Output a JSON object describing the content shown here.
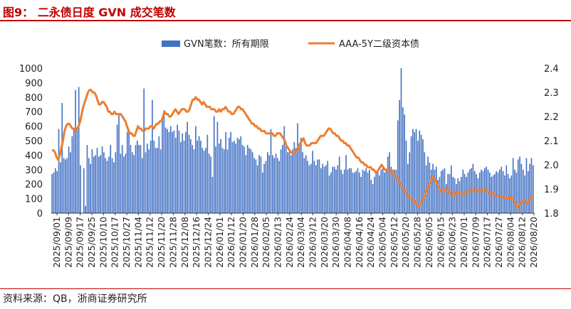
{
  "title": "图9： 二永债日度 GVN 成交笔数",
  "source": "资料来源：QB，浙商证券研究所",
  "colors": {
    "bar": "#4472c4",
    "line": "#ed7d31",
    "accent": "#c00000",
    "axis": "#333333"
  },
  "chart_data": {
    "type": "bar+line",
    "legend_position": "top-center",
    "grid": false,
    "x_tick_labels": [
      "2025/09/01",
      "2025/09/09",
      "2025/09/17",
      "2025/09/25",
      "2025/10/10",
      "2025/10/17",
      "2025/10/27",
      "2025/11/04",
      "2025/11/12",
      "2025/11/20",
      "2025/11/28",
      "2025/12/08",
      "2025/12/16",
      "2025/12/24",
      "2026/01/01",
      "2026/01/12",
      "2026/01/20",
      "2026/01/28",
      "2026/02/05",
      "2026/02/13",
      "2026/02/24",
      "2026/03/04",
      "2026/03/12",
      "2026/03/20",
      "2026/03/30",
      "2026/04/08",
      "2026/04/16",
      "2026/04/24",
      "2026/05/04",
      "2026/05/12",
      "2026/05/20",
      "2026/05/28",
      "2026/06/05",
      "2026/06/15",
      "2026/06/23",
      "2026/07/01",
      "2026/07/09",
      "2026/07/17",
      "2026/07/27",
      "2026/08/04",
      "2026/08/12",
      "2026/08/20"
    ],
    "y_left": {
      "min": 0,
      "max": 1000,
      "ticks": [
        0,
        100,
        200,
        300,
        400,
        500,
        600,
        700,
        800,
        900,
        1000
      ]
    },
    "y_right": {
      "min": 1.8,
      "max": 2.4,
      "ticks": [
        "1.8",
        "1.9",
        "2.0",
        "2.1",
        "2.2",
        "2.3",
        "2.4"
      ]
    },
    "series": [
      {
        "name": "GVN笔数：所有期限",
        "type": "bar",
        "axis": "left",
        "values": [
          270,
          280,
          310,
          290,
          580,
          350,
          760,
          380,
          370,
          380,
          460,
          420,
          530,
          580,
          850,
          580,
          870,
          330,
          0,
          310,
          50,
          470,
          380,
          340,
          440,
          390,
          400,
          450,
          390,
          400,
          460,
          420,
          380,
          360,
          390,
          470,
          380,
          350,
          420,
          610,
          680,
          410,
          470,
          390,
          410,
          560,
          580,
          470,
          420,
          400,
          470,
          500,
          470,
          470,
          380,
          860,
          420,
          480,
          440,
          500,
          780,
          500,
          450,
          450,
          530,
          440,
          640,
          710,
          590,
          580,
          560,
          600,
          560,
          570,
          520,
          610,
          570,
          490,
          550,
          500,
          560,
          630,
          540,
          510,
          470,
          440,
          600,
          500,
          530,
          500,
          450,
          430,
          450,
          540,
          410,
          390,
          250,
          670,
          460,
          630,
          480,
          510,
          450,
          440,
          560,
          440,
          520,
          560,
          490,
          500,
          480,
          520,
          510,
          530,
          470,
          460,
          400,
          470,
          450,
          440,
          420,
          380,
          370,
          330,
          400,
          390,
          280,
          340,
          360,
          420,
          400,
          580,
          400,
          380,
          410,
          380,
          360,
          440,
          470,
          600,
          460,
          420,
          420,
          400,
          440,
          490,
          450,
          620,
          470,
          520,
          420,
          380,
          400,
          360,
          330,
          340,
          430,
          360,
          330,
          370,
          370,
          310,
          340,
          320,
          330,
          360,
          260,
          280,
          320,
          320,
          300,
          330,
          390,
          300,
          270,
          300,
          400,
          300,
          310,
          310,
          280,
          280,
          290,
          310,
          280,
          250,
          300,
          290,
          310,
          280,
          300,
          230,
          200,
          250,
          280,
          290,
          260,
          300,
          310,
          280,
          300,
          390,
          420,
          320,
          300,
          300,
          300,
          640,
          780,
          1000,
          730,
          680,
          500,
          340,
          420,
          530,
          580,
          560,
          580,
          500,
          570,
          540,
          510,
          420,
          330,
          390,
          350,
          300,
          340,
          300,
          320,
          230,
          250,
          290,
          300,
          310,
          200,
          270,
          270,
          330,
          250,
          240,
          200,
          240,
          220,
          250,
          300,
          270,
          250,
          280,
          300,
          310,
          340,
          290,
          270,
          240,
          280,
          300,
          290,
          310,
          320,
          300,
          280,
          250,
          260,
          270,
          290,
          280,
          300,
          320,
          290,
          260,
          330,
          270,
          240,
          260,
          380,
          300,
          280,
          370,
          390,
          340,
          300,
          260,
          380,
          290,
          340,
          380,
          330
        ]
      },
      {
        "name": "AAA-5Y二级资本债",
        "type": "line",
        "axis": "right",
        "values": [
          2.06,
          2.06,
          2.05,
          2.03,
          2.02,
          2.04,
          2.07,
          2.1,
          2.14,
          2.16,
          2.17,
          2.17,
          2.16,
          2.15,
          2.15,
          2.14,
          2.15,
          2.16,
          2.18,
          2.21,
          2.24,
          2.26,
          2.28,
          2.3,
          2.31,
          2.31,
          2.3,
          2.3,
          2.29,
          2.27,
          2.25,
          2.25,
          2.26,
          2.26,
          2.25,
          2.24,
          2.22,
          2.22,
          2.21,
          2.21,
          2.22,
          2.21,
          2.21,
          2.21,
          2.21,
          2.2,
          2.19,
          2.18,
          2.16,
          2.14,
          2.13,
          2.13,
          2.12,
          2.12,
          2.14,
          2.16,
          2.15,
          2.15,
          2.14,
          2.14,
          2.15,
          2.15,
          2.15,
          2.16,
          2.16,
          2.15,
          2.16,
          2.17,
          2.17,
          2.18,
          2.18,
          2.2,
          2.22,
          2.21,
          2.21,
          2.2,
          2.2,
          2.21,
          2.22,
          2.23,
          2.22,
          2.21,
          2.22,
          2.23,
          2.23,
          2.23,
          2.22,
          2.22,
          2.23,
          2.25,
          2.27,
          2.27,
          2.28,
          2.27,
          2.27,
          2.26,
          2.25,
          2.26,
          2.25,
          2.24,
          2.24,
          2.24,
          2.23,
          2.23,
          2.23,
          2.22,
          2.22,
          2.23,
          2.22,
          2.23,
          2.23,
          2.24,
          2.23,
          2.22,
          2.22,
          2.21,
          2.21,
          2.22,
          2.23,
          2.24,
          2.24,
          2.23,
          2.23,
          2.22,
          2.21,
          2.2,
          2.19,
          2.18,
          2.17,
          2.17,
          2.16,
          2.16,
          2.15,
          2.15,
          2.14,
          2.14,
          2.14,
          2.13,
          2.13,
          2.13,
          2.13,
          2.13,
          2.12,
          2.12,
          2.13,
          2.13,
          2.13,
          2.12,
          2.11,
          2.1,
          2.08,
          2.07,
          2.06,
          2.05,
          2.05,
          2.05,
          2.06,
          2.06,
          2.08,
          2.09,
          2.1,
          2.11,
          2.09,
          2.08,
          2.08,
          2.08,
          2.09,
          2.09,
          2.09,
          2.09,
          2.1,
          2.11,
          2.12,
          2.12,
          2.12,
          2.13,
          2.14,
          2.15,
          2.15,
          2.14,
          2.13,
          2.13,
          2.12,
          2.12,
          2.11,
          2.1,
          2.1,
          2.09,
          2.09,
          2.08,
          2.08,
          2.07,
          2.06,
          2.05,
          2.04,
          2.03,
          2.03,
          2.02,
          2.01,
          2.01,
          2.0,
          2.0,
          1.99,
          1.99,
          1.99,
          1.98,
          1.98,
          1.97,
          1.97,
          1.98,
          1.99,
          2.0,
          1.99,
          1.98,
          1.98,
          1.98,
          1.97,
          1.98,
          1.97,
          1.96,
          1.95,
          1.94,
          1.93,
          1.92,
          1.91,
          1.9,
          1.89,
          1.88,
          1.87,
          1.86,
          1.86,
          1.85,
          1.85,
          1.84,
          1.83,
          1.83,
          1.84,
          1.85,
          1.86,
          1.88,
          1.9,
          1.91,
          1.93,
          1.94,
          1.95,
          1.94,
          1.93,
          1.91,
          1.9,
          1.89,
          1.89,
          1.89,
          1.9,
          1.9,
          1.89,
          1.88,
          1.88,
          1.87,
          1.88,
          1.89,
          1.88,
          1.88,
          1.88,
          1.88,
          1.88,
          1.89,
          1.89,
          1.89,
          1.89,
          1.89,
          1.9,
          1.9,
          1.89,
          1.89,
          1.89,
          1.89,
          1.9,
          1.9,
          1.89,
          1.89,
          1.88,
          1.88,
          1.88,
          1.88,
          1.87,
          1.87,
          1.87,
          1.87,
          1.87,
          1.87,
          1.86,
          1.86,
          1.86,
          1.87,
          1.86,
          1.86,
          1.85,
          1.83,
          1.82,
          1.83,
          1.84,
          1.85,
          1.85,
          1.85,
          1.84,
          1.85,
          1.86,
          1.87,
          1.87
        ]
      }
    ]
  }
}
